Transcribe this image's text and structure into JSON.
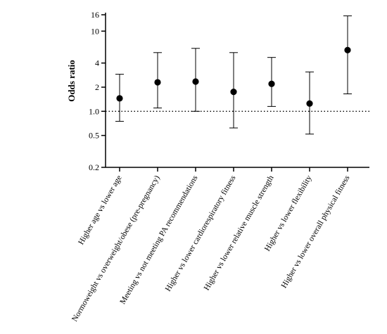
{
  "chart_data": {
    "type": "scatter",
    "subtype": "odds-ratio-error-bars",
    "ylabel": "Odds ratio",
    "yscale": "log",
    "ylim": [
      0.2,
      17
    ],
    "yticks": [
      0.2,
      0.5,
      1.0,
      2,
      4,
      10,
      16
    ],
    "ytick_labels": [
      "0.2",
      "0.5",
      "1.0",
      "2",
      "4",
      "10",
      "16"
    ],
    "reference_line": 1.0,
    "grid": false,
    "categories": [
      "Higher age vs lower age",
      "Normoweight vs overweight/obese (pre-pregnancy)",
      "Meeting vs not meeting PA recommendations",
      "Higher vs lower cardiorespiratory fitness",
      "Higher vs lower relative muscle strength",
      "Higher vs lower flexibility",
      "Higher vs lower overall physical fitness"
    ],
    "points": [
      {
        "or": 1.45,
        "lower": 0.75,
        "upper": 2.9
      },
      {
        "or": 2.3,
        "lower": 1.1,
        "upper": 5.4
      },
      {
        "or": 2.35,
        "lower": 1.0,
        "upper": 6.1
      },
      {
        "or": 1.75,
        "lower": 0.62,
        "upper": 5.4
      },
      {
        "or": 2.2,
        "lower": 1.15,
        "upper": 4.7
      },
      {
        "or": 1.25,
        "lower": 0.52,
        "upper": 3.1
      },
      {
        "or": 5.8,
        "lower": 1.65,
        "upper": 15.5
      }
    ]
  }
}
